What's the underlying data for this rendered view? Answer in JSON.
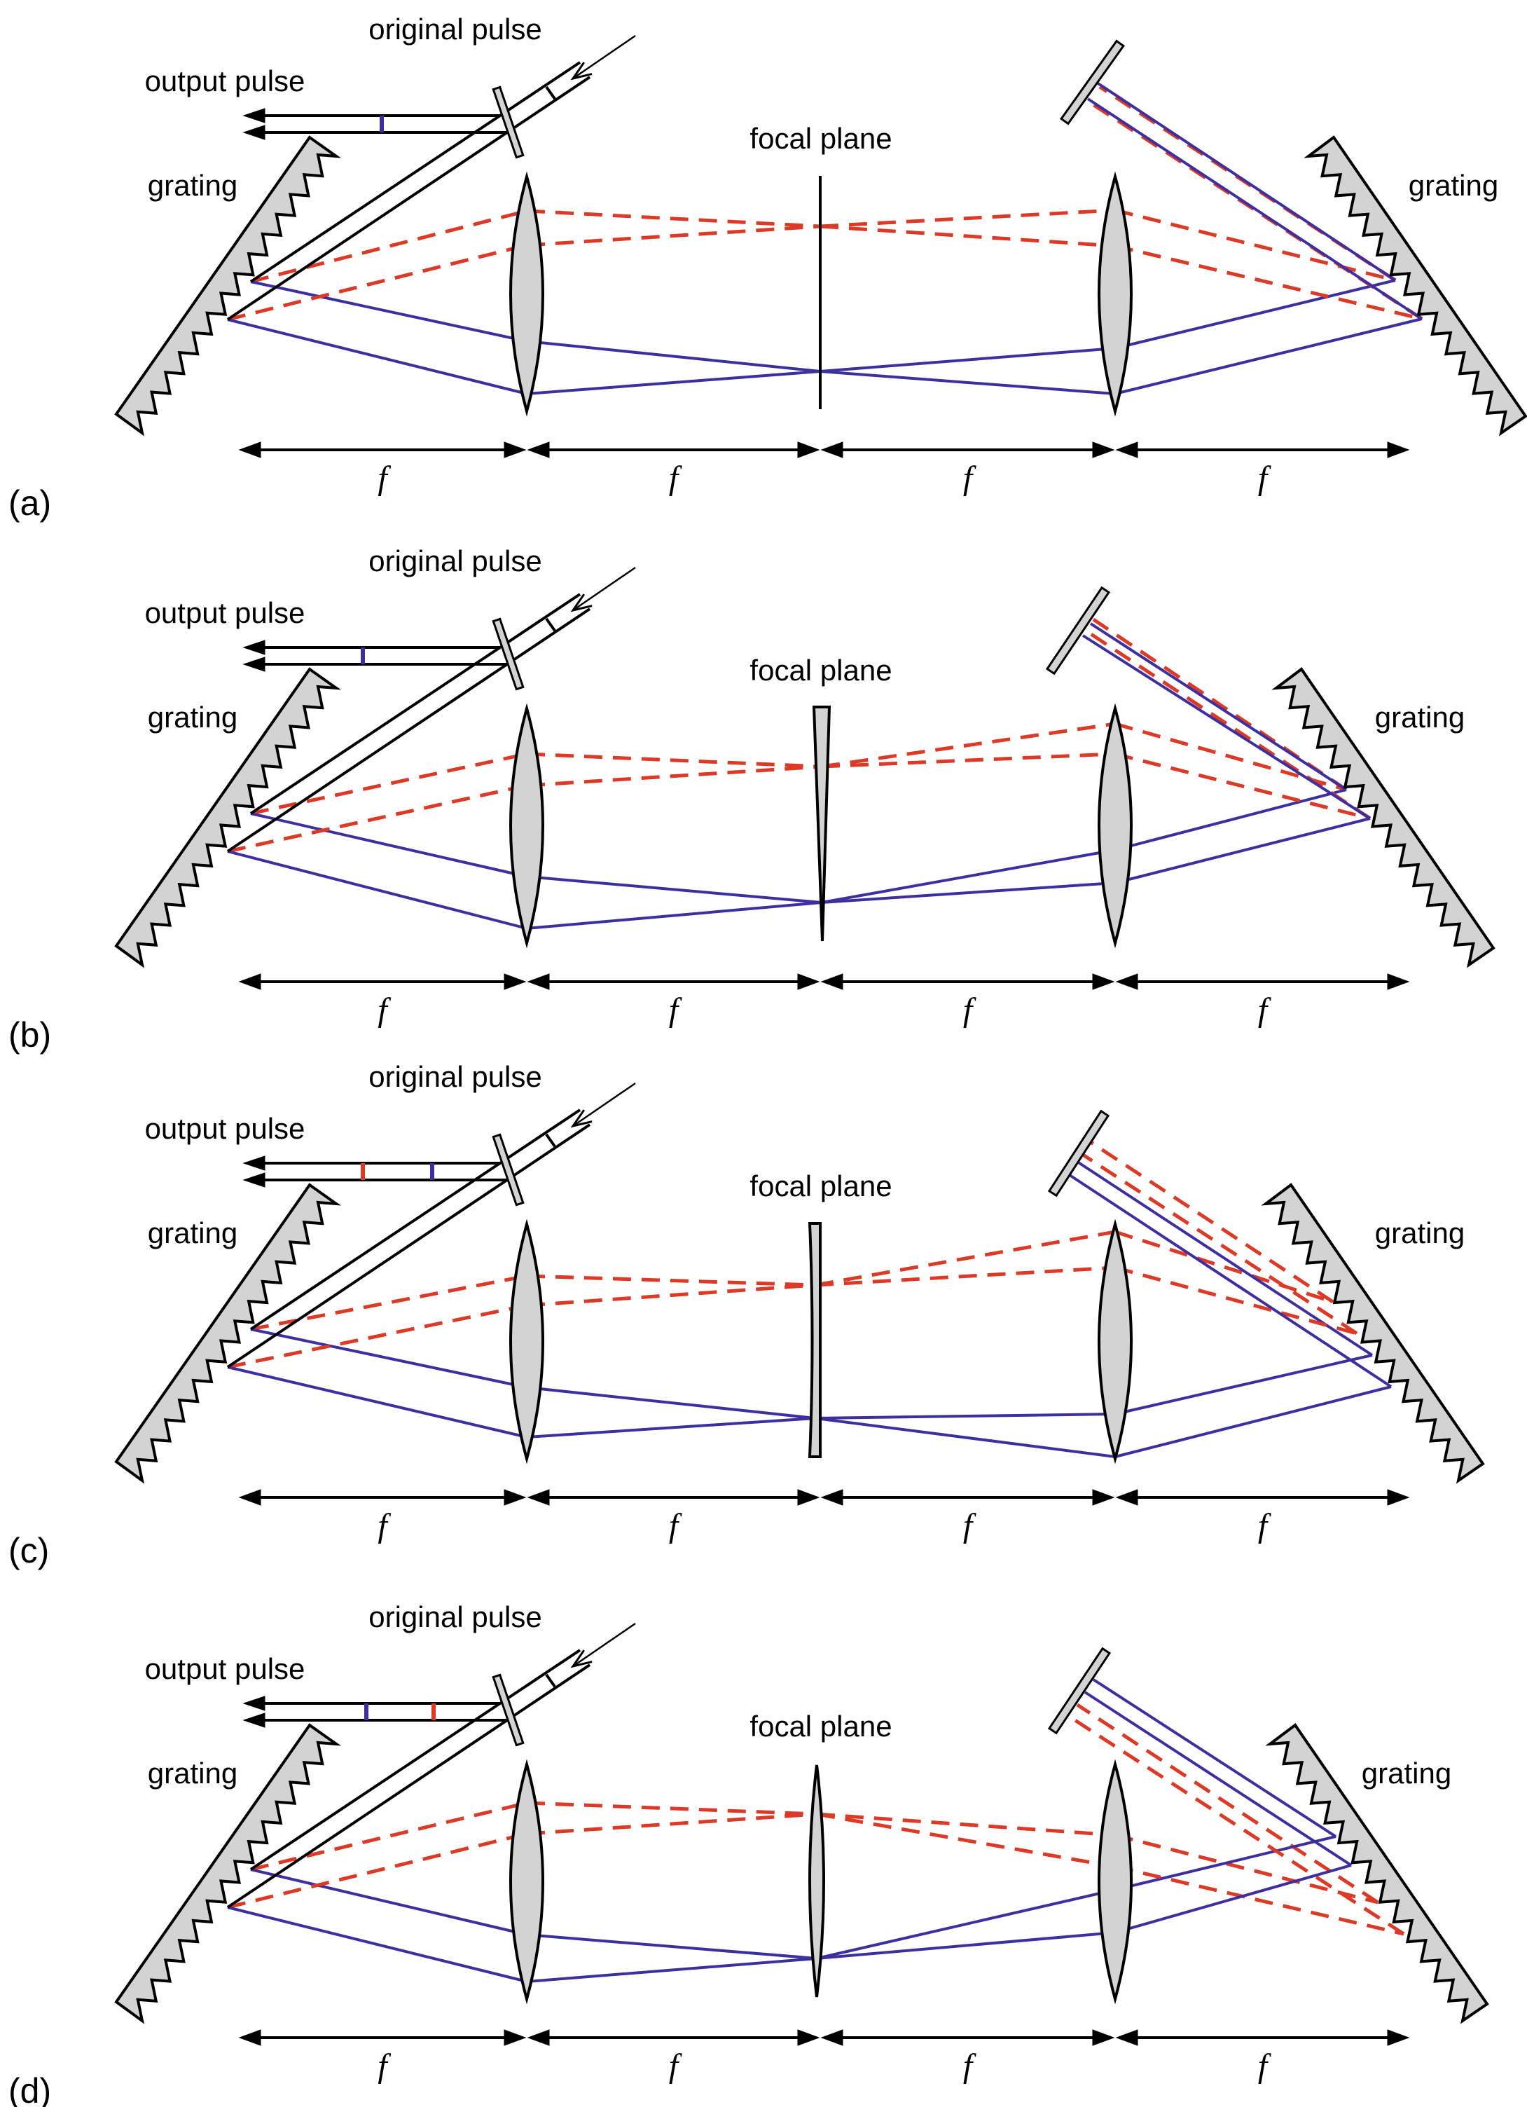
{
  "labels": {
    "original_pulse": "original pulse",
    "output_pulse": "output pulse",
    "grating": "grating",
    "focal_plane": "focal plane",
    "distance": "f"
  },
  "colors": {
    "blue": "#3d2f9f",
    "red": "#dc3a26",
    "optic_fill": "#d3d3d3",
    "outline": "#000000"
  },
  "panels": [
    {
      "label": "(a)",
      "focal_element": "plane",
      "output_marks": [
        "blue"
      ]
    },
    {
      "label": "(b)",
      "focal_element": "wedge",
      "output_marks": [
        "blue"
      ]
    },
    {
      "label": "(c)",
      "focal_element": "concave plate",
      "output_marks": [
        "red",
        "blue"
      ]
    },
    {
      "label": "(d)",
      "focal_element": "convex lens",
      "output_marks": [
        "blue",
        "red"
      ]
    }
  ]
}
